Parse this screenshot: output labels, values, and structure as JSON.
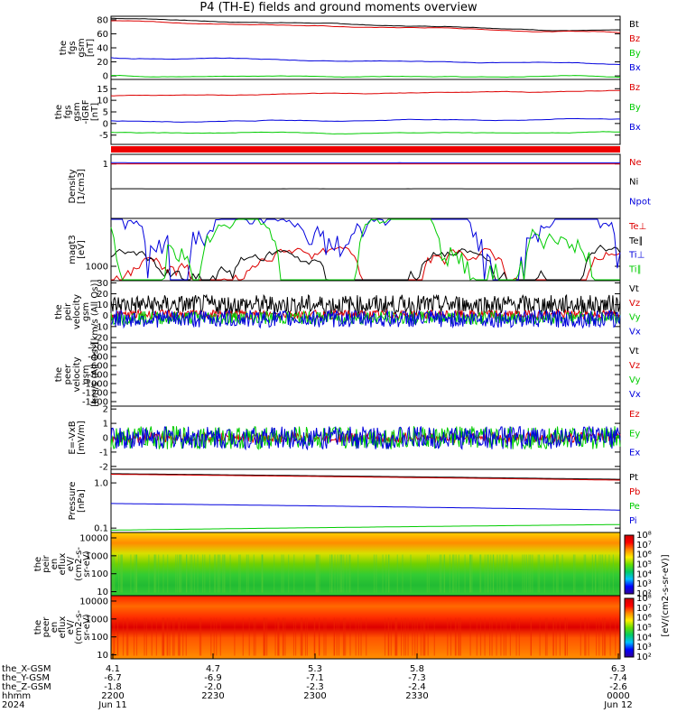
{
  "title": "P4 (TH-E) fields and ground moments overview",
  "chart_data": {
    "type": "line",
    "title": "P4 (TH-E) fields and ground moments overview",
    "panels": [
      {
        "id": "fgs_gsm",
        "ylabel": [
          "the",
          "fgs",
          "gsm",
          "[nT]"
        ],
        "yticks": [
          "0",
          "20",
          "40",
          "60",
          "80"
        ],
        "ylim": [
          -5,
          85
        ],
        "series": [
          {
            "name": "Bt",
            "color": "#000000",
            "start": 82,
            "end": 64
          },
          {
            "name": "Bz",
            "color": "#dd0000",
            "start": 78,
            "end": 62
          },
          {
            "name": "By",
            "color": "#00cc00",
            "start": 0,
            "end": -1
          },
          {
            "name": "Bx",
            "color": "#0000dd",
            "start": 26,
            "end": 17
          }
        ]
      },
      {
        "id": "fgs_dgsm",
        "ylabel": [
          "the",
          "fgs",
          "gsm",
          "-IGRF",
          "[nT]"
        ],
        "yticks": [
          "-5",
          "0",
          "5",
          "10",
          "15"
        ],
        "ylim": [
          -9,
          19
        ],
        "series": [
          {
            "name": "Bz",
            "color": "#dd0000",
            "start": 12,
            "end": 14
          },
          {
            "name": "By",
            "color": "#00cc00",
            "start": -4,
            "end": -4
          },
          {
            "name": "Bx",
            "color": "#0000dd",
            "start": 1,
            "end": 2
          }
        ]
      },
      {
        "id": "density",
        "ylabel": [
          "Density",
          "[1/cm3]"
        ],
        "yticks": [
          "1"
        ],
        "ylim": [
          0.1,
          1.5
        ],
        "series": [
          {
            "name": "Ne",
            "color": "#dd0000",
            "start": 1.0,
            "end": 1.0
          },
          {
            "name": "Ni",
            "color": "#000000",
            "start": 0.35,
            "end": 0.35
          },
          {
            "name": "Npot",
            "color": "#0000dd",
            "start": 1.05,
            "end": 1.05
          }
        ]
      },
      {
        "id": "temperature",
        "ylabel": [
          "magt3",
          "[eV]"
        ],
        "yticks": [
          "1000"
        ],
        "ylim": [
          500,
          10000
        ],
        "series": [
          {
            "name": "Te⊥",
            "color": "#dd0000",
            "start": 700,
            "end": 900
          },
          {
            "name": "Te∥",
            "color": "#000000",
            "start": 600,
            "end": 800
          },
          {
            "name": "Ti⊥",
            "color": "#0000dd",
            "start": 7000,
            "end": 5500
          },
          {
            "name": "Ti∥",
            "color": "#00cc00",
            "start": 4000,
            "end": 3500
          }
        ]
      },
      {
        "id": "peir_velocity",
        "ylabel": [
          "the",
          "peir",
          "velocity",
          "gsm",
          "[km/s (All Qs)]"
        ],
        "yticks": [
          "-20",
          "-10",
          "0",
          "10",
          "20",
          "30"
        ],
        "ylim": [
          -25,
          32
        ],
        "series": [
          {
            "name": "Vt",
            "color": "#000000",
            "start": 10,
            "end": 10
          },
          {
            "name": "Vz",
            "color": "#dd0000",
            "start": 1,
            "end": 1
          },
          {
            "name": "Vy",
            "color": "#00cc00",
            "start": -2,
            "end": -2
          },
          {
            "name": "Vx",
            "color": "#0000dd",
            "start": -3,
            "end": -3
          }
        ]
      },
      {
        "id": "peer_velocity",
        "ylabel": [
          "the",
          "peer",
          "velocity",
          "gsm",
          "[km/s (All Qs)]"
        ],
        "yticks": [
          "-1400",
          "-1200",
          "-1000",
          "-800",
          "-600",
          "-400",
          "-200"
        ],
        "ylim": [
          -1500,
          -100
        ],
        "series": [
          {
            "name": "Vt",
            "color": "#000000"
          },
          {
            "name": "Vz",
            "color": "#dd0000"
          },
          {
            "name": "Vy",
            "color": "#00cc00"
          },
          {
            "name": "Vx",
            "color": "#0000dd"
          }
        ]
      },
      {
        "id": "efield",
        "ylabel": [
          "E=-VxB",
          "[mV/m]"
        ],
        "yticks": [
          "-2",
          "-1",
          "0",
          "1",
          "2"
        ],
        "ylim": [
          -2.2,
          2.2
        ],
        "series": [
          {
            "name": "Ez",
            "color": "#dd0000",
            "start": 0,
            "end": 0
          },
          {
            "name": "Ey",
            "color": "#00cc00",
            "start": 0,
            "end": 0
          },
          {
            "name": "Ex",
            "color": "#0000dd",
            "start": 0,
            "end": 0
          }
        ]
      },
      {
        "id": "pressure",
        "ylabel": [
          "Pressure",
          "[nPa]"
        ],
        "yticks": [
          "0.1",
          "1.0"
        ],
        "ylim": [
          0.08,
          2.0
        ],
        "series": [
          {
            "name": "Pt",
            "color": "#000000",
            "start": 1.6,
            "end": 1.2
          },
          {
            "name": "Pb",
            "color": "#dd0000",
            "start": 1.55,
            "end": 1.15
          },
          {
            "name": "Pe",
            "color": "#00cc00",
            "start": 0.09,
            "end": 0.12
          },
          {
            "name": "Pi",
            "color": "#0000dd",
            "start": 0.35,
            "end": 0.25
          }
        ]
      }
    ],
    "spectrograms": [
      {
        "id": "peir_en_eflux",
        "ylabel": [
          "the",
          "peir",
          "en",
          "eflux",
          "eV/",
          "(cm2-s-",
          "sr-eV)"
        ],
        "yticks": [
          "10",
          "100",
          "1000",
          "10000"
        ]
      },
      {
        "id": "peer_en_eflux",
        "ylabel": [
          "the",
          "peer",
          "en",
          "eflux",
          "eV/",
          "(cm2-s-",
          "sr-eV)"
        ],
        "yticks": [
          "10",
          "100",
          "1000",
          "10000"
        ]
      }
    ],
    "colorbar": {
      "label": "[eV/(cm2-s-sr-eV)]",
      "ticks": [
        "10²",
        "10³",
        "10⁴",
        "10⁵",
        "10⁶",
        "10⁷",
        "10⁸"
      ]
    },
    "x_axis": {
      "rows": [
        {
          "label": "the_X-GSM",
          "values": [
            "4.1",
            "4.7",
            "5.3",
            "5.8",
            "6.3"
          ]
        },
        {
          "label": "the_Y-GSM",
          "values": [
            "-6.7",
            "-6.9",
            "-7.1",
            "-7.3",
            "-7.4"
          ]
        },
        {
          "label": "the_Z-GSM",
          "values": [
            "-1.8",
            "-2.0",
            "-2.3",
            "-2.4",
            "-2.6"
          ]
        },
        {
          "label": "hhmm",
          "values": [
            "2200",
            "2230",
            "2300",
            "2330",
            "0000"
          ]
        },
        {
          "label": "2024",
          "values": [
            "Jun 11",
            "",
            "",
            "",
            "Jun 12"
          ]
        }
      ]
    }
  }
}
